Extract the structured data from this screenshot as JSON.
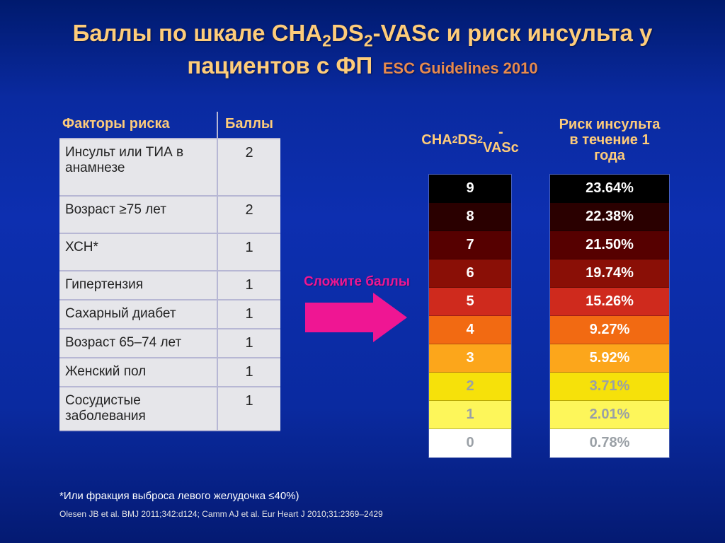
{
  "title_html": "Баллы по шкале CHA<sub class='small'>2</sub>DS<sub class='small'>2</sub>-VASc и риск инсульта у пациентов с ФП",
  "subtitle": "ESC Guidelines  2010",
  "left_table": {
    "header_factor": "Факторы риска",
    "header_score": "Баллы",
    "rows": [
      {
        "factor": "Инсульт или ТИА в анамнезе",
        "score": 2,
        "h": "tall"
      },
      {
        "factor": "Возраст ≥75 лет",
        "score": 2,
        "h": "med"
      },
      {
        "factor": "ХСН*",
        "score": 1,
        "h": "med"
      },
      {
        "factor": "Гипертензия",
        "score": 1,
        "h": ""
      },
      {
        "factor": "Сахарный диабет",
        "score": 1,
        "h": ""
      },
      {
        "factor": "Возраст 65–74 лет",
        "score": 1,
        "h": ""
      },
      {
        "factor": "Женский пол",
        "score": 1,
        "h": ""
      },
      {
        "factor": "Сосудистые заболевания",
        "score": 1,
        "h": ""
      }
    ]
  },
  "arrow_label": "Сложите баллы",
  "arrow_color": "#ef1693",
  "score_col_header_html": "CHA<sub class='small'>2</sub>DS<sub class='small'>2</sub>-<br>VASc",
  "risk_col_header": "Риск инсульта в течение 1 года",
  "rows": [
    {
      "score": 9,
      "risk": "23.64%",
      "bg": "#000000",
      "fg": "#ffffff"
    },
    {
      "score": 8,
      "risk": "22.38%",
      "bg": "#2a0000",
      "fg": "#ffffff"
    },
    {
      "score": 7,
      "risk": "21.50%",
      "bg": "#560000",
      "fg": "#ffffff"
    },
    {
      "score": 6,
      "risk": "19.74%",
      "bg": "#8a0f06",
      "fg": "#ffffff"
    },
    {
      "score": 5,
      "risk": "15.26%",
      "bg": "#cf2a1d",
      "fg": "#ffffff"
    },
    {
      "score": 4,
      "risk": "9.27%",
      "bg": "#f26a12",
      "fg": "#ffffff"
    },
    {
      "score": 3,
      "risk": "5.92%",
      "bg": "#fca61b",
      "fg": "#ffffff"
    },
    {
      "score": 2,
      "risk": "3.71%",
      "bg": "#f6e10a",
      "fg": "#9aa0a6"
    },
    {
      "score": 1,
      "risk": "2.01%",
      "bg": "#fdf65a",
      "fg": "#9aa0a6"
    },
    {
      "score": 0,
      "risk": "0.78%",
      "bg": "#ffffff",
      "fg": "#9aa0a6"
    }
  ],
  "footnote": "*Или фракция выброса левого желудочка ≤40%)",
  "source": "Olesen JB et al. BMJ 2011;342:d124; Camm AJ et al. Eur Heart J 2010;31:2369–2429",
  "colors": {
    "title": "#fecc7a",
    "subtitle": "#e88a4e",
    "bg_top": "#001a6e",
    "bg_mid": "#0d2fb0",
    "table_bg": "#e6e6ea",
    "table_border": "#b7b7d4"
  },
  "fontsizes": {
    "title": 33,
    "subtitle": 22,
    "header": 20,
    "cell": 20,
    "table": 19,
    "footnote": 15,
    "source": 12
  }
}
